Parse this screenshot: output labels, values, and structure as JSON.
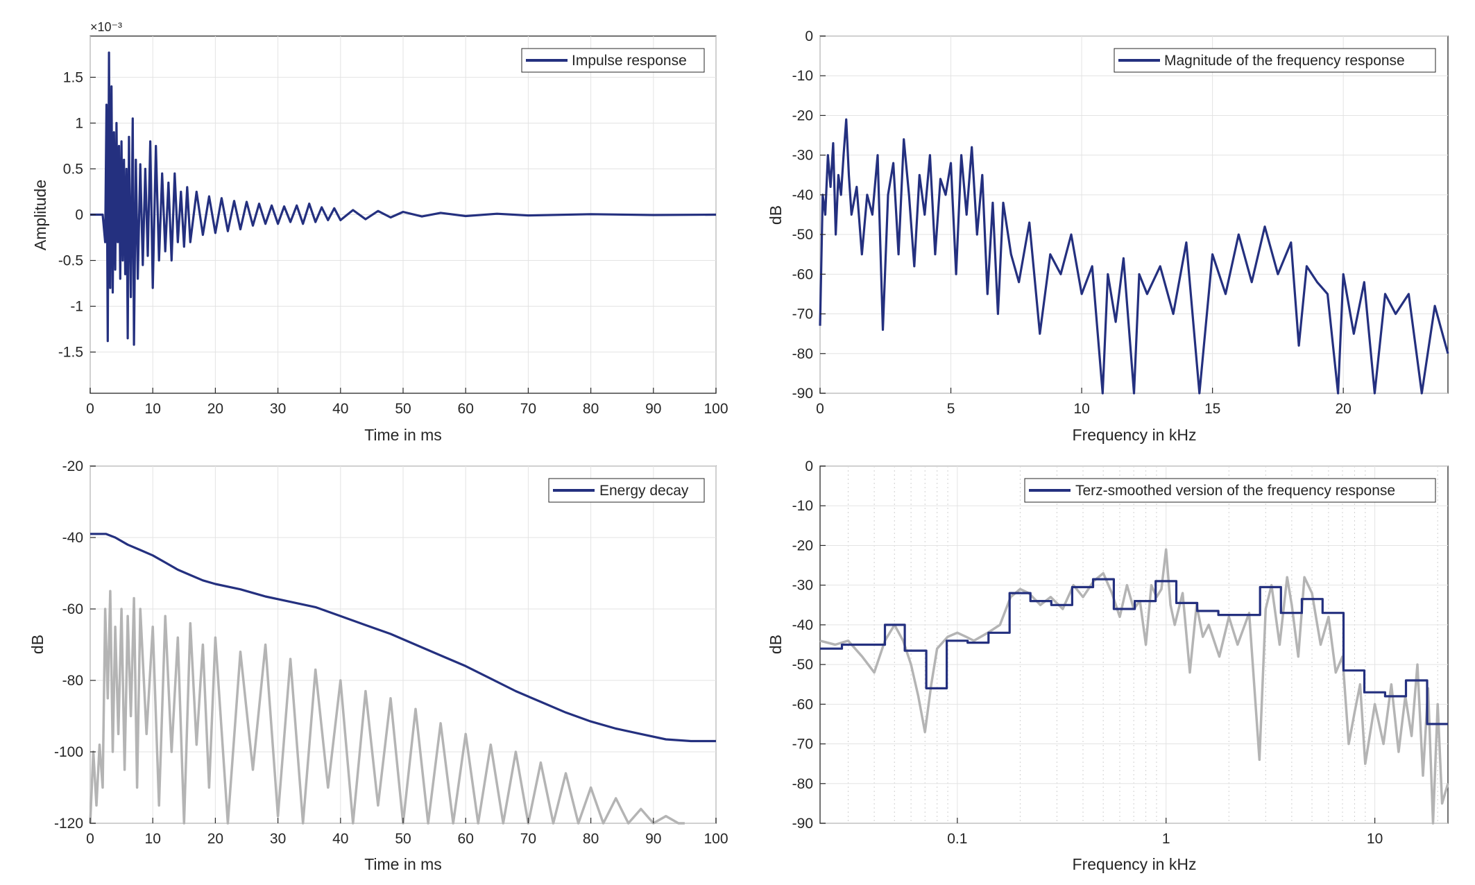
{
  "chart_data": [
    {
      "id": "impulse",
      "type": "line",
      "title": "",
      "xlabel": "Time in ms",
      "ylabel": "Amplitude",
      "y_exponent_label": "×10⁻³",
      "xlim": [
        0,
        100
      ],
      "ylim": [
        -1.95,
        1.95
      ],
      "xticks": [
        0,
        10,
        20,
        30,
        40,
        50,
        60,
        70,
        80,
        90,
        100
      ],
      "xtick_labels": [
        "0",
        "10",
        "20",
        "30",
        "40",
        "50",
        "60",
        "70",
        "80",
        "90",
        "100"
      ],
      "yticks": [
        -1.5,
        -1,
        -0.5,
        0,
        0.5,
        1,
        1.5
      ],
      "ytick_labels": [
        "-1.5",
        "-1",
        "-0.5",
        "0",
        "0.5",
        "1",
        "1.5"
      ],
      "grid": true,
      "legend_position": "top-right",
      "series": [
        {
          "name": "Impulse response",
          "color": "#24307f",
          "x": [
            0,
            2.0,
            2.4,
            2.6,
            2.8,
            3.0,
            3.2,
            3.4,
            3.6,
            3.8,
            4.0,
            4.2,
            4.4,
            4.6,
            4.8,
            5.0,
            5.2,
            5.4,
            5.6,
            5.8,
            6.0,
            6.2,
            6.5,
            6.8,
            7.0,
            7.3,
            7.6,
            8.0,
            8.4,
            8.8,
            9.2,
            9.6,
            10.0,
            10.5,
            11.0,
            11.5,
            12.0,
            12.5,
            13.0,
            13.5,
            14.0,
            14.5,
            15.0,
            15.5,
            16.0,
            17.0,
            18.0,
            19.0,
            20.0,
            21.0,
            22.0,
            23.0,
            24.0,
            25.0,
            26.0,
            27.0,
            28.0,
            29.0,
            30.0,
            31.0,
            32.0,
            33.0,
            34.0,
            35.0,
            36.0,
            37.0,
            38.0,
            39.0,
            40.0,
            42.0,
            44.0,
            46.0,
            48.0,
            50.0,
            53.0,
            56.0,
            60.0,
            65.0,
            70.0,
            80.0,
            90.0,
            100.0
          ],
          "y": [
            0,
            0,
            -0.3,
            1.2,
            -1.38,
            1.77,
            -0.8,
            1.4,
            -0.85,
            0.9,
            -0.6,
            1.0,
            -0.3,
            0.75,
            -0.7,
            0.8,
            -0.5,
            0.6,
            -0.65,
            0.5,
            -1.35,
            0.85,
            -0.9,
            1.05,
            -1.42,
            0.6,
            -0.7,
            0.55,
            -0.55,
            0.5,
            -0.45,
            0.8,
            -0.8,
            0.75,
            -0.5,
            0.45,
            -0.4,
            0.35,
            -0.5,
            0.45,
            -0.3,
            0.25,
            -0.35,
            0.3,
            -0.3,
            0.25,
            -0.22,
            0.2,
            -0.2,
            0.18,
            -0.18,
            0.15,
            -0.16,
            0.14,
            -0.12,
            0.12,
            -0.1,
            0.1,
            -0.1,
            0.09,
            -0.08,
            0.1,
            -0.1,
            0.12,
            -0.08,
            0.08,
            -0.06,
            0.07,
            -0.06,
            0.05,
            -0.05,
            0.04,
            -0.03,
            0.03,
            -0.02,
            0.02,
            -0.015,
            0.01,
            -0.008,
            0.005,
            -0.004,
            0
          ]
        }
      ]
    },
    {
      "id": "magnitude",
      "type": "line",
      "title": "",
      "xlabel": "Frequency in kHz",
      "ylabel": "dB",
      "xlim": [
        0,
        24
      ],
      "ylim": [
        -90,
        0
      ],
      "xticks": [
        0,
        5,
        10,
        15,
        20
      ],
      "xtick_labels": [
        "0",
        "5",
        "10",
        "15",
        "20"
      ],
      "yticks": [
        0,
        -10,
        -20,
        -30,
        -40,
        -50,
        -60,
        -70,
        -80,
        -90
      ],
      "ytick_labels": [
        "0",
        "-10",
        "-20",
        "-30",
        "-40",
        "-50",
        "-60",
        "-70",
        "-80",
        "-90"
      ],
      "grid": true,
      "legend_position": "top-right",
      "series": [
        {
          "name": "Magnitude of the frequency response",
          "color": "#24307f",
          "x": [
            0,
            0.1,
            0.2,
            0.3,
            0.4,
            0.5,
            0.6,
            0.7,
            0.8,
            0.9,
            1.0,
            1.1,
            1.2,
            1.4,
            1.6,
            1.8,
            2.0,
            2.2,
            2.4,
            2.6,
            2.8,
            3.0,
            3.2,
            3.4,
            3.6,
            3.8,
            4.0,
            4.2,
            4.4,
            4.6,
            4.8,
            5.0,
            5.2,
            5.4,
            5.6,
            5.8,
            6.0,
            6.2,
            6.4,
            6.6,
            6.8,
            7.0,
            7.3,
            7.6,
            8.0,
            8.4,
            8.8,
            9.2,
            9.6,
            10.0,
            10.4,
            10.8,
            11.0,
            11.3,
            11.6,
            12.0,
            12.2,
            12.5,
            13.0,
            13.5,
            14.0,
            14.5,
            15.0,
            15.5,
            16.0,
            16.5,
            17.0,
            17.5,
            18.0,
            18.3,
            18.6,
            19.0,
            19.4,
            19.8,
            20.0,
            20.4,
            20.8,
            21.2,
            21.6,
            22.0,
            22.5,
            23.0,
            23.5,
            24.0
          ],
          "y": [
            -73,
            -40,
            -45,
            -30,
            -38,
            -27,
            -50,
            -35,
            -40,
            -30,
            -21,
            -35,
            -45,
            -38,
            -55,
            -40,
            -45,
            -30,
            -74,
            -40,
            -32,
            -55,
            -26,
            -40,
            -58,
            -35,
            -45,
            -30,
            -55,
            -36,
            -40,
            -32,
            -60,
            -30,
            -45,
            -28,
            -50,
            -35,
            -65,
            -42,
            -70,
            -42,
            -55,
            -62,
            -47,
            -75,
            -55,
            -60,
            -50,
            -65,
            -58,
            -90,
            -60,
            -72,
            -56,
            -90,
            -60,
            -65,
            -58,
            -70,
            -52,
            -90,
            -55,
            -65,
            -50,
            -62,
            -48,
            -60,
            -52,
            -78,
            -58,
            -62,
            -65,
            -90,
            -60,
            -75,
            -62,
            -90,
            -65,
            -70,
            -65,
            -90,
            -68,
            -80
          ]
        }
      ]
    },
    {
      "id": "energy",
      "type": "line",
      "title": "",
      "xlabel": "Time in ms",
      "ylabel": "dB",
      "xlim": [
        0,
        100
      ],
      "ylim": [
        -120,
        -20
      ],
      "xticks": [
        0,
        10,
        20,
        30,
        40,
        50,
        60,
        70,
        80,
        90,
        100
      ],
      "xtick_labels": [
        "0",
        "10",
        "20",
        "30",
        "40",
        "50",
        "60",
        "70",
        "80",
        "90",
        "100"
      ],
      "yticks": [
        -20,
        -40,
        -60,
        -80,
        -100,
        -120
      ],
      "ytick_labels": [
        "-20",
        "-40",
        "-60",
        "-80",
        "-100",
        "-120"
      ],
      "grid": true,
      "legend_position": "top-right",
      "series": [
        {
          "name": "",
          "color": "#b4b4b4",
          "x": [
            0,
            0.5,
            1.0,
            1.5,
            2.0,
            2.4,
            2.8,
            3.2,
            3.6,
            4.0,
            4.5,
            5.0,
            5.5,
            6.0,
            6.5,
            7.0,
            7.5,
            8.0,
            9.0,
            10.0,
            11.0,
            12.0,
            13.0,
            14.0,
            15.0,
            16.0,
            17.0,
            18.0,
            19.0,
            20.0,
            22.0,
            24.0,
            26.0,
            28.0,
            30.0,
            32.0,
            34.0,
            36.0,
            38.0,
            40.0,
            42.0,
            44.0,
            46.0,
            48.0,
            50.0,
            52.0,
            54.0,
            56.0,
            58.0,
            60.0,
            62.0,
            64.0,
            66.0,
            68.0,
            70.0,
            72.0,
            74.0,
            76.0,
            78.0,
            80.0,
            82.0,
            84.0,
            86.0,
            88.0,
            90.0,
            92.0,
            94.0,
            95.0
          ],
          "y": [
            -120,
            -100,
            -115,
            -98,
            -110,
            -60,
            -85,
            -55,
            -100,
            -65,
            -95,
            -60,
            -105,
            -62,
            -90,
            -57,
            -110,
            -60,
            -95,
            -65,
            -115,
            -62,
            -100,
            -68,
            -120,
            -64,
            -98,
            -70,
            -110,
            -68,
            -120,
            -72,
            -105,
            -70,
            -118,
            -74,
            -120,
            -77,
            -110,
            -80,
            -120,
            -83,
            -115,
            -85,
            -120,
            -88,
            -120,
            -92,
            -120,
            -95,
            -120,
            -98,
            -120,
            -100,
            -120,
            -103,
            -120,
            -106,
            -120,
            -110,
            -120,
            -113,
            -120,
            -116,
            -120,
            -118,
            -120,
            -120
          ]
        },
        {
          "name": "Energy decay",
          "color": "#24307f",
          "x": [
            0,
            2.5,
            4,
            6,
            8,
            10,
            12,
            14,
            16,
            18,
            20,
            24,
            28,
            32,
            36,
            40,
            44,
            48,
            52,
            56,
            60,
            64,
            68,
            72,
            76,
            80,
            84,
            88,
            92,
            96,
            100
          ],
          "y": [
            -39,
            -39,
            -40,
            -42,
            -43.5,
            -45,
            -47,
            -49,
            -50.5,
            -52,
            -53,
            -54.5,
            -56.5,
            -58,
            -59.5,
            -62,
            -64.5,
            -67,
            -70,
            -73,
            -76,
            -79.5,
            -83,
            -86,
            -89,
            -91.5,
            -93.5,
            -95,
            -96.5,
            -97,
            -97
          ]
        }
      ]
    },
    {
      "id": "terz",
      "type": "line",
      "title": "",
      "xlabel": "Frequency in kHz",
      "ylabel": "dB",
      "x_scale": "log",
      "xlim": [
        0.022,
        22.4
      ],
      "ylim": [
        -90,
        0
      ],
      "xticks": [
        0.1,
        1,
        10
      ],
      "xtick_labels": [
        "0.1",
        "1",
        "10"
      ],
      "yticks": [
        0,
        -10,
        -20,
        -30,
        -40,
        -50,
        -60,
        -70,
        -80,
        -90
      ],
      "ytick_labels": [
        "0",
        "-10",
        "-20",
        "-30",
        "-40",
        "-50",
        "-60",
        "-70",
        "-80",
        "-90"
      ],
      "grid": true,
      "legend_position": "top-right",
      "series": [
        {
          "name": "",
          "color": "#b4b4b4",
          "x": [
            0.022,
            0.026,
            0.03,
            0.035,
            0.04,
            0.045,
            0.05,
            0.055,
            0.06,
            0.065,
            0.07,
            0.075,
            0.08,
            0.09,
            0.1,
            0.11,
            0.12,
            0.14,
            0.16,
            0.18,
            0.2,
            0.22,
            0.25,
            0.28,
            0.32,
            0.36,
            0.4,
            0.45,
            0.5,
            0.55,
            0.6,
            0.65,
            0.7,
            0.75,
            0.8,
            0.85,
            0.9,
            0.95,
            1.0,
            1.05,
            1.1,
            1.2,
            1.3,
            1.4,
            1.5,
            1.6,
            1.8,
            2.0,
            2.2,
            2.5,
            2.8,
            3.0,
            3.2,
            3.5,
            3.8,
            4.0,
            4.3,
            4.6,
            5.0,
            5.5,
            6.0,
            6.5,
            7.0,
            7.5,
            8.0,
            8.5,
            9.0,
            10.0,
            11.0,
            12.0,
            13.0,
            14.0,
            15.0,
            16.0,
            17.0,
            18.0,
            19.0,
            20.0,
            21.0,
            22.4
          ],
          "y": [
            -44,
            -45,
            -44,
            -48,
            -52,
            -44,
            -40,
            -44,
            -50,
            -58,
            -67,
            -55,
            -46,
            -43,
            -42,
            -43,
            -44,
            -42,
            -40,
            -33,
            -31,
            -32,
            -35,
            -33,
            -36,
            -30,
            -33,
            -29,
            -27,
            -32,
            -38,
            -30,
            -36,
            -34,
            -45,
            -30,
            -33,
            -31,
            -21,
            -35,
            -40,
            -32,
            -52,
            -35,
            -43,
            -40,
            -48,
            -38,
            -45,
            -37,
            -74,
            -36,
            -30,
            -45,
            -28,
            -35,
            -48,
            -28,
            -32,
            -45,
            -38,
            -52,
            -48,
            -70,
            -62,
            -55,
            -75,
            -60,
            -70,
            -55,
            -72,
            -58,
            -68,
            -50,
            -78,
            -56,
            -90,
            -60,
            -85,
            -80
          ]
        },
        {
          "name": "Terz-smoothed version of the frequency response",
          "color": "#24307f",
          "x": [
            0.022,
            0.028,
            0.028,
            0.035,
            0.035,
            0.045,
            0.045,
            0.056,
            0.056,
            0.071,
            0.071,
            0.089,
            0.089,
            0.112,
            0.112,
            0.141,
            0.141,
            0.178,
            0.178,
            0.224,
            0.224,
            0.282,
            0.282,
            0.355,
            0.355,
            0.447,
            0.447,
            0.562,
            0.562,
            0.708,
            0.708,
            0.891,
            0.891,
            1.12,
            1.12,
            1.41,
            1.41,
            1.78,
            1.78,
            2.24,
            2.24,
            2.82,
            2.82,
            3.55,
            3.55,
            4.47,
            4.47,
            5.62,
            5.62,
            7.08,
            7.08,
            8.91,
            8.91,
            11.2,
            11.2,
            14.1,
            14.1,
            17.8,
            17.8,
            22.4
          ],
          "y": [
            -46,
            -46,
            -45,
            -45,
            -45,
            -45,
            -40,
            -40,
            -46.5,
            -46.5,
            -56,
            -56,
            -44,
            -44,
            -44.5,
            -44.5,
            -42,
            -42,
            -32,
            -32,
            -34,
            -34,
            -35,
            -35,
            -30.5,
            -30.5,
            -28.5,
            -28.5,
            -36,
            -36,
            -34,
            -34,
            -29,
            -29,
            -34.5,
            -34.5,
            -36.5,
            -36.5,
            -37.5,
            -37.5,
            -37.5,
            -37.5,
            -30.5,
            -30.5,
            -37,
            -37,
            -33.5,
            -33.5,
            -37,
            -37,
            -51.5,
            -51.5,
            -57,
            -57,
            -58,
            -58,
            -54,
            -54,
            -65,
            -65
          ]
        }
      ]
    }
  ]
}
